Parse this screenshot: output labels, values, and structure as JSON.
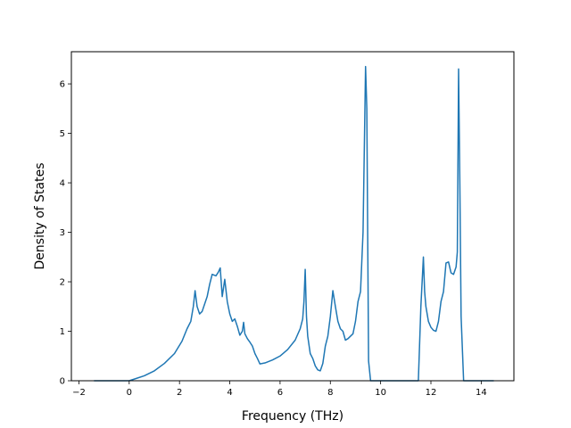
{
  "chart_data": {
    "type": "line",
    "xlabel": "Frequency (THz)",
    "ylabel": "Density of States",
    "xlim": [
      -2.3,
      15.3
    ],
    "ylim": [
      0,
      6.65
    ],
    "xticks": [
      -2,
      0,
      2,
      4,
      6,
      8,
      10,
      12,
      14
    ],
    "xtick_labels": [
      "−2",
      "0",
      "2",
      "4",
      "6",
      "8",
      "10",
      "12",
      "14"
    ],
    "yticks": [
      0,
      1,
      2,
      3,
      4,
      5,
      6
    ],
    "ytick_labels": [
      "0",
      "1",
      "2",
      "3",
      "4",
      "5",
      "6"
    ],
    "grid": false,
    "line_color": "#1f77b4",
    "series": [
      {
        "x": [
          -1.4,
          0.0,
          0.3,
          0.6,
          1.0,
          1.4,
          1.8,
          2.1,
          2.3,
          2.45,
          2.55,
          2.62,
          2.7,
          2.8,
          2.9,
          3.0,
          3.1,
          3.2,
          3.3,
          3.45,
          3.55,
          3.62,
          3.7,
          3.8,
          3.9,
          4.0,
          4.1,
          4.2,
          4.3,
          4.4,
          4.5,
          4.55,
          4.6,
          4.7,
          4.8,
          4.9,
          5.0,
          5.1,
          5.2,
          5.4,
          5.7,
          6.0,
          6.3,
          6.6,
          6.8,
          6.9,
          6.95,
          7.0,
          7.05,
          7.1,
          7.2,
          7.3,
          7.4,
          7.5,
          7.6,
          7.7,
          7.8,
          7.9,
          8.0,
          8.1,
          8.2,
          8.3,
          8.4,
          8.5,
          8.6,
          8.7,
          8.8,
          8.9,
          9.0,
          9.1,
          9.2,
          9.3,
          9.4,
          9.45,
          9.52,
          9.6,
          9.7,
          11.5,
          11.6,
          11.7,
          11.75,
          11.8,
          11.9,
          12.0,
          12.1,
          12.2,
          12.3,
          12.4,
          12.5,
          12.6,
          12.7,
          12.8,
          12.9,
          13.0,
          13.05,
          13.1,
          13.15,
          13.2,
          13.3,
          14.5
        ],
        "y": [
          0,
          0,
          0.05,
          0.1,
          0.2,
          0.35,
          0.55,
          0.8,
          1.05,
          1.2,
          1.5,
          1.82,
          1.5,
          1.35,
          1.4,
          1.55,
          1.7,
          1.95,
          2.15,
          2.12,
          2.2,
          2.28,
          1.7,
          2.05,
          1.6,
          1.35,
          1.2,
          1.25,
          1.1,
          0.92,
          1.0,
          1.18,
          0.95,
          0.85,
          0.78,
          0.7,
          0.55,
          0.45,
          0.34,
          0.36,
          0.42,
          0.5,
          0.63,
          0.82,
          1.05,
          1.25,
          1.6,
          2.25,
          1.3,
          0.9,
          0.55,
          0.45,
          0.3,
          0.22,
          0.2,
          0.35,
          0.7,
          0.9,
          1.3,
          1.82,
          1.5,
          1.2,
          1.05,
          1.0,
          0.82,
          0.85,
          0.9,
          0.95,
          1.2,
          1.6,
          1.8,
          3.0,
          6.35,
          5.5,
          0.4,
          0.0,
          0.0,
          0.0,
          1.5,
          2.5,
          1.8,
          1.5,
          1.2,
          1.08,
          1.02,
          1.0,
          1.2,
          1.6,
          1.8,
          2.38,
          2.4,
          2.18,
          2.15,
          2.3,
          2.6,
          6.3,
          4.0,
          1.3,
          0.0,
          0.0
        ]
      }
    ]
  }
}
